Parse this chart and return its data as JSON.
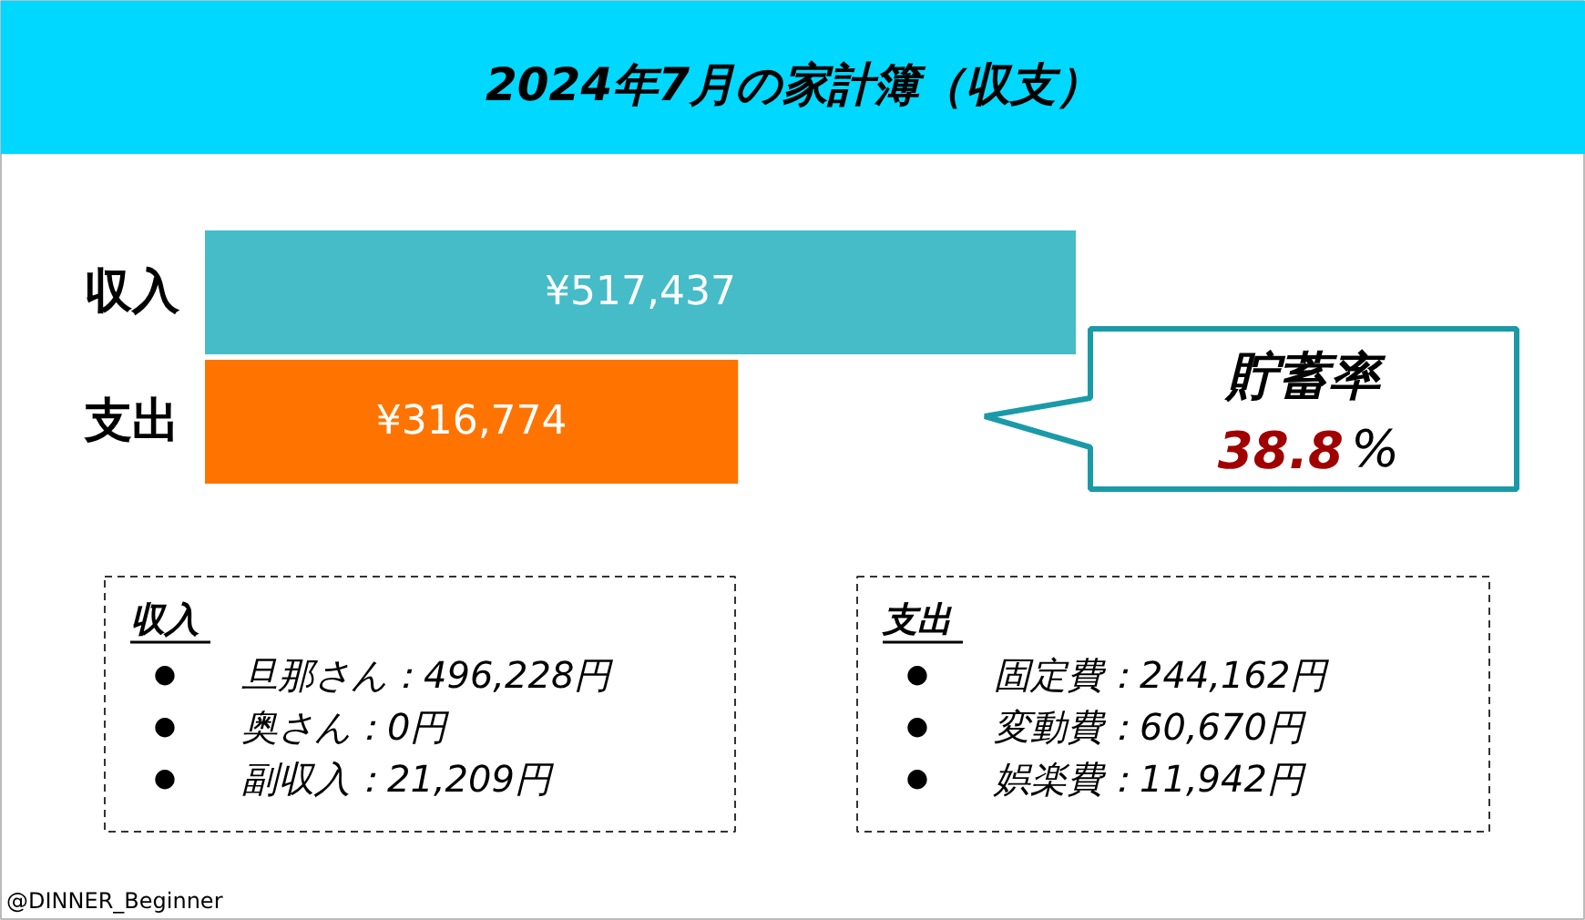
{
  "chart_data": {
    "type": "bar",
    "orientation": "horizontal",
    "title": "2024年7月の家計簿（収支）",
    "categories": [
      "収入",
      "支出"
    ],
    "values": [
      517437,
      316774
    ],
    "colors": [
      "#45bcc8",
      "#ff7400"
    ],
    "value_labels": [
      "¥517,437",
      "¥316,774"
    ],
    "annotations": [
      "貯蓄率",
      "38.8%",
      "収入",
      "●旦那さん：496,228円",
      "●奥さん：0円",
      "●副収入：21,209円",
      "支出",
      "●固定費：244,162円",
      "●変動費：60,670円",
      "●娯楽費：11,942円",
      "@DINNER_Beginner"
    ]
  }
}
